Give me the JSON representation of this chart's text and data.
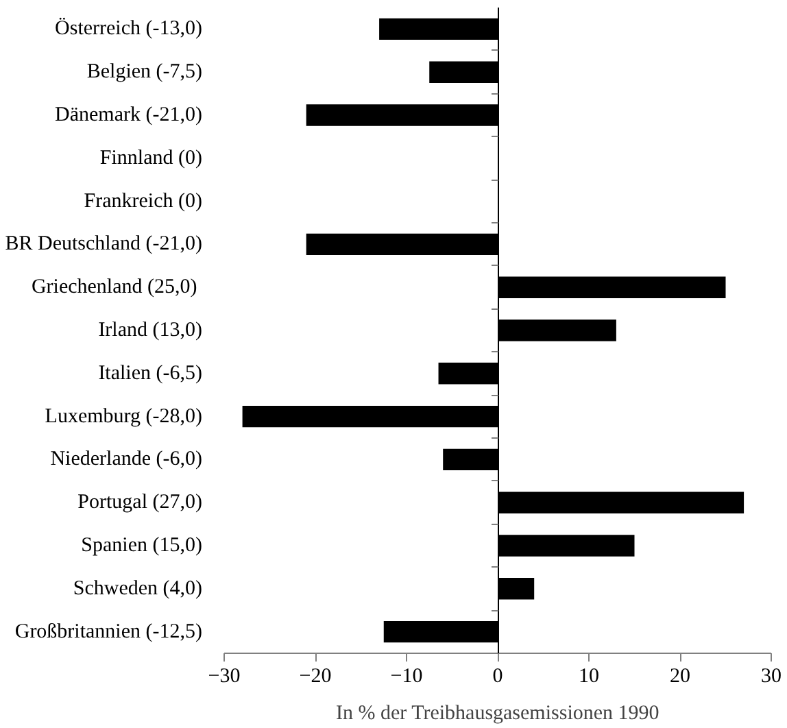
{
  "chart_data": {
    "type": "bar",
    "orientation": "horizontal",
    "xlabel": "In % der Treibhausgasemissionen 1990",
    "categories": [
      "Österreich (-13,0)",
      "Belgien (-7,5)",
      "Dänemark (-21,0)",
      "Finnland (0)",
      "Frankreich (0)",
      "BR Deutschland (-21,0)",
      "Griechenland  (25,0)",
      "Irland (13,0)",
      "Italien (-6,5)",
      "Luxemburg (-28,0)",
      "Niederlande (-6,0)",
      "Portugal (27,0)",
      "Spanien (15,0)",
      "Schweden (4,0)",
      "Großbritannien (-12,5)"
    ],
    "values": [
      -13,
      -7.5,
      -21,
      0,
      0,
      -21,
      25,
      13,
      -6.5,
      -28,
      -6,
      27,
      15,
      4,
      -12.5
    ],
    "color": "#000000",
    "xlim": [
      -30,
      30
    ],
    "xticks": [
      -30,
      -20,
      -10,
      0,
      10,
      20,
      30
    ]
  }
}
